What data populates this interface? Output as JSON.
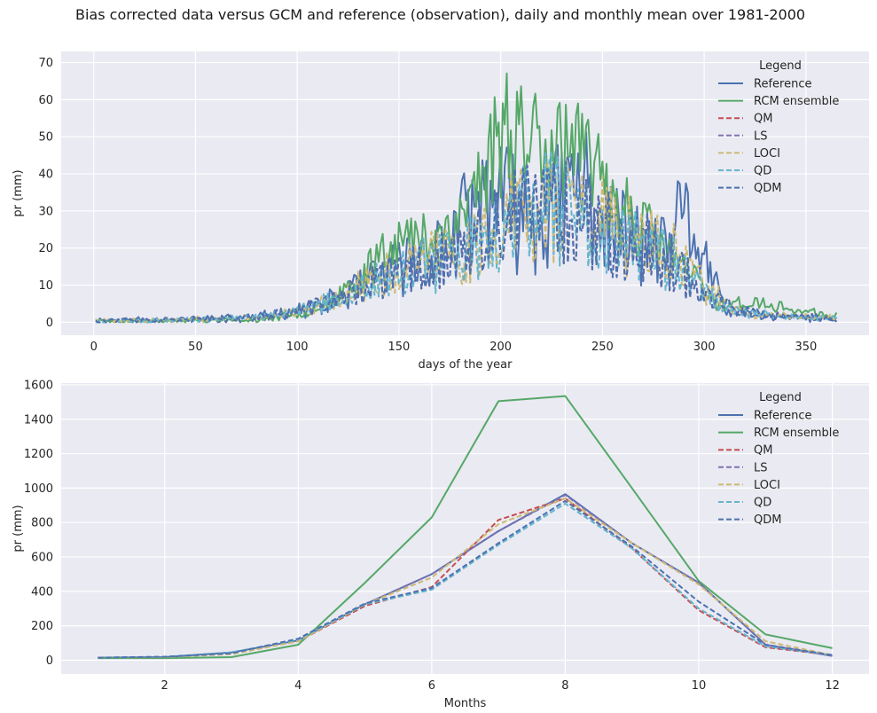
{
  "figure": {
    "suptitle": "Bias corrected data versus GCM and reference (observation), daily and monthly mean over 1981-2000",
    "background": "#ffffff",
    "axes_background": "#eaeaf2",
    "grid_color": "#ffffff"
  },
  "chart_data": [
    {
      "type": "line",
      "xlabel": "days of the year",
      "ylabel": "pr (mm)",
      "xlim": [
        -16,
        381
      ],
      "ylim": [
        -3.5,
        73
      ],
      "xticks": [
        0,
        50,
        100,
        150,
        200,
        250,
        300,
        350
      ],
      "yticks": [
        0,
        10,
        20,
        30,
        40,
        50,
        60,
        70
      ],
      "grid": true,
      "legend_title": "Legend",
      "legend_position": "upper right",
      "x_note": "days 1..365, values approximated from the envelope of noisy daily series",
      "anchors": {
        "Reference": [
          [
            1,
            0.5
          ],
          [
            40,
            0.8
          ],
          [
            80,
            1.5
          ],
          [
            100,
            3
          ],
          [
            120,
            6
          ],
          [
            140,
            12
          ],
          [
            150,
            15
          ],
          [
            170,
            20
          ],
          [
            185,
            28
          ],
          [
            195,
            35
          ],
          [
            205,
            30
          ],
          [
            215,
            28
          ],
          [
            225,
            30
          ],
          [
            240,
            38
          ],
          [
            250,
            28
          ],
          [
            265,
            22
          ],
          [
            280,
            18
          ],
          [
            290,
            28
          ],
          [
            300,
            18
          ],
          [
            310,
            3
          ],
          [
            330,
            1.5
          ],
          [
            365,
            0.7
          ]
        ],
        "RCM ensemble": [
          [
            1,
            0.3
          ],
          [
            40,
            0.3
          ],
          [
            80,
            0.6
          ],
          [
            100,
            2
          ],
          [
            115,
            5
          ],
          [
            130,
            10
          ],
          [
            143,
            22
          ],
          [
            160,
            22
          ],
          [
            180,
            28
          ],
          [
            195,
            45
          ],
          [
            205,
            55
          ],
          [
            215,
            50
          ],
          [
            225,
            52
          ],
          [
            235,
            45
          ],
          [
            250,
            38
          ],
          [
            265,
            28
          ],
          [
            280,
            20
          ],
          [
            295,
            12
          ],
          [
            305,
            5
          ],
          [
            325,
            5
          ],
          [
            365,
            1.5
          ]
        ],
        "QM": [
          [
            1,
            0.4
          ],
          [
            40,
            0.5
          ],
          [
            80,
            1.2
          ],
          [
            100,
            3
          ],
          [
            120,
            6
          ],
          [
            140,
            11
          ],
          [
            160,
            15
          ],
          [
            180,
            18
          ],
          [
            195,
            22
          ],
          [
            205,
            28
          ],
          [
            215,
            30
          ],
          [
            225,
            32
          ],
          [
            240,
            28
          ],
          [
            255,
            24
          ],
          [
            270,
            20
          ],
          [
            285,
            16
          ],
          [
            300,
            8
          ],
          [
            315,
            3
          ],
          [
            340,
            1.5
          ],
          [
            365,
            1
          ]
        ],
        "LS": [
          [
            1,
            0.4
          ],
          [
            40,
            0.5
          ],
          [
            80,
            1.2
          ],
          [
            100,
            3
          ],
          [
            120,
            6
          ],
          [
            140,
            11
          ],
          [
            160,
            15
          ],
          [
            180,
            18
          ],
          [
            195,
            22
          ],
          [
            205,
            28
          ],
          [
            215,
            30
          ],
          [
            225,
            32
          ],
          [
            240,
            28
          ],
          [
            255,
            24
          ],
          [
            270,
            20
          ],
          [
            285,
            16
          ],
          [
            300,
            8
          ],
          [
            315,
            3
          ],
          [
            340,
            1.5
          ],
          [
            365,
            1
          ]
        ],
        "LOCI": [
          [
            1,
            0.4
          ],
          [
            40,
            0.5
          ],
          [
            80,
            1.2
          ],
          [
            100,
            3
          ],
          [
            120,
            6
          ],
          [
            140,
            12
          ],
          [
            160,
            16
          ],
          [
            180,
            19
          ],
          [
            195,
            23
          ],
          [
            205,
            28
          ],
          [
            215,
            30
          ],
          [
            225,
            32
          ],
          [
            240,
            28
          ],
          [
            255,
            25
          ],
          [
            270,
            21
          ],
          [
            285,
            18
          ],
          [
            300,
            9
          ],
          [
            315,
            3
          ],
          [
            340,
            1.5
          ],
          [
            365,
            1
          ]
        ],
        "QD": [
          [
            1,
            0.4
          ],
          [
            40,
            0.5
          ],
          [
            80,
            1.2
          ],
          [
            100,
            3
          ],
          [
            120,
            6
          ],
          [
            140,
            11
          ],
          [
            160,
            15
          ],
          [
            180,
            18
          ],
          [
            195,
            22
          ],
          [
            205,
            27
          ],
          [
            215,
            30
          ],
          [
            225,
            31
          ],
          [
            240,
            27
          ],
          [
            255,
            24
          ],
          [
            270,
            20
          ],
          [
            285,
            16
          ],
          [
            300,
            8
          ],
          [
            315,
            3
          ],
          [
            340,
            1.5
          ],
          [
            365,
            1
          ]
        ],
        "QDM": [
          [
            1,
            0.4
          ],
          [
            40,
            0.5
          ],
          [
            80,
            1.2
          ],
          [
            100,
            3
          ],
          [
            120,
            6
          ],
          [
            140,
            11
          ],
          [
            160,
            15
          ],
          [
            180,
            18
          ],
          [
            195,
            22
          ],
          [
            205,
            28
          ],
          [
            215,
            30
          ],
          [
            225,
            32
          ],
          [
            240,
            28
          ],
          [
            255,
            24
          ],
          [
            270,
            20
          ],
          [
            285,
            16
          ],
          [
            300,
            8
          ],
          [
            315,
            3
          ],
          [
            340,
            1.5
          ],
          [
            365,
            1
          ]
        ]
      },
      "series": [
        {
          "name": "Reference",
          "color": "#4c72b0",
          "dash": "solid",
          "amp": 0.55,
          "seed": 11
        },
        {
          "name": "RCM ensemble",
          "color": "#55a868",
          "dash": "solid",
          "amp": 0.35,
          "seed": 23
        },
        {
          "name": "QM",
          "color": "#c44e52",
          "dash": "dashed",
          "amp": 0.5,
          "seed": 37
        },
        {
          "name": "LS",
          "color": "#8172b2",
          "dash": "dashed",
          "amp": 0.5,
          "seed": 37
        },
        {
          "name": "LOCI",
          "color": "#ccb974",
          "dash": "dashed",
          "amp": 0.5,
          "seed": 41
        },
        {
          "name": "QD",
          "color": "#64b5cd",
          "dash": "dashed",
          "amp": 0.5,
          "seed": 43
        },
        {
          "name": "QDM",
          "color": "#4c72b0",
          "dash": "dashed",
          "amp": 0.5,
          "seed": 37
        }
      ]
    },
    {
      "type": "line",
      "xlabel": "Months",
      "ylabel": "pr (mm)",
      "xlim": [
        0.45,
        12.55
      ],
      "ylim": [
        -80,
        1610
      ],
      "xticks": [
        2,
        4,
        6,
        8,
        10,
        12
      ],
      "yticks": [
        0,
        200,
        400,
        600,
        800,
        1000,
        1200,
        1400,
        1600
      ],
      "grid": true,
      "legend_title": "Legend",
      "legend_position": "upper right",
      "x": [
        1,
        2,
        3,
        4,
        5,
        6,
        7,
        8,
        9,
        10,
        11,
        12
      ],
      "series": [
        {
          "name": "Reference",
          "color": "#4c72b0",
          "dash": "solid",
          "values": [
            15,
            18,
            45,
            115,
            325,
            500,
            750,
            965,
            680,
            450,
            90,
            25
          ]
        },
        {
          "name": "RCM ensemble",
          "color": "#55a868",
          "dash": "solid",
          "values": [
            12,
            12,
            18,
            90,
            450,
            830,
            1505,
            1535,
            1000,
            460,
            150,
            70
          ]
        },
        {
          "name": "QM",
          "color": "#c44e52",
          "dash": "dashed",
          "values": [
            15,
            18,
            40,
            110,
            315,
            425,
            815,
            940,
            650,
            290,
            75,
            30
          ]
        },
        {
          "name": "LS",
          "color": "#8172b2",
          "dash": "dashed",
          "values": [
            15,
            18,
            45,
            115,
            325,
            500,
            750,
            960,
            680,
            450,
            90,
            25
          ]
        },
        {
          "name": "LOCI",
          "color": "#ccb974",
          "dash": "dashed",
          "values": [
            15,
            18,
            35,
            110,
            325,
            480,
            790,
            940,
            680,
            440,
            110,
            30
          ]
        },
        {
          "name": "QD",
          "color": "#64b5cd",
          "dash": "dashed",
          "values": [
            15,
            20,
            45,
            120,
            325,
            410,
            670,
            910,
            650,
            300,
            80,
            30
          ]
        },
        {
          "name": "QDM",
          "color": "#4c72b0",
          "dash": "dashed",
          "values": [
            15,
            20,
            40,
            125,
            330,
            420,
            680,
            925,
            660,
            340,
            90,
            30
          ]
        }
      ]
    }
  ]
}
